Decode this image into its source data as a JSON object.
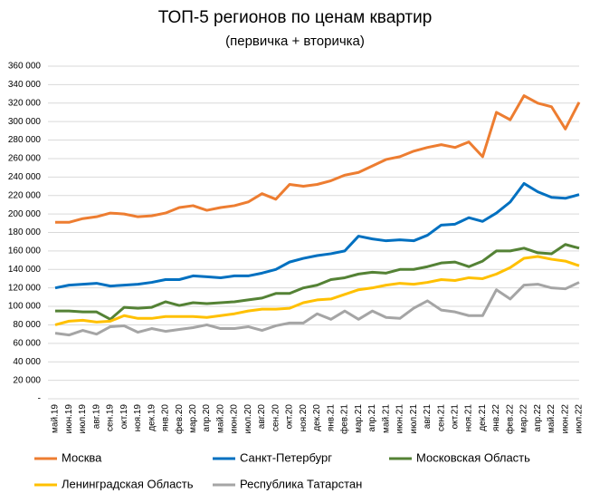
{
  "chart_data": {
    "type": "line",
    "title": "ТОП-5 регионов по ценам квартир",
    "subtitle": "(первичка + вторичка)",
    "categories": [
      "май.19",
      "июн.19",
      "июл.19",
      "авг.19",
      "сен.19",
      "окт.19",
      "ноя.19",
      "дек.19",
      "янв.20",
      "фев.20",
      "мар.20",
      "апр.20",
      "май.20",
      "июн.20",
      "июл.20",
      "авг.20",
      "сен.20",
      "окт.20",
      "ноя.20",
      "дек.20",
      "янв.21",
      "фев.21",
      "мар.21",
      "апр.21",
      "май.21",
      "июн.21",
      "июл.21",
      "авг.21",
      "сен.21",
      "окт.21",
      "ноя.21",
      "дек.21",
      "янв.22",
      "фев.22",
      "мар.22",
      "апр.22",
      "май.22",
      "июн.22",
      "июл.22"
    ],
    "series": [
      {
        "name": "Москва",
        "color": "#ED7D31",
        "values": [
          191000,
          191000,
          195000,
          197000,
          201000,
          200000,
          197000,
          198000,
          201000,
          207000,
          209000,
          204000,
          207000,
          209000,
          213000,
          222000,
          216000,
          232000,
          230000,
          232000,
          236000,
          242000,
          245000,
          252000,
          259000,
          262000,
          268000,
          272000,
          275000,
          272000,
          278000,
          262000,
          310000,
          302000,
          328000,
          320000,
          316000,
          292000,
          321000
        ]
      },
      {
        "name": "Санкт-Петербург",
        "color": "#0070C0",
        "values": [
          120000,
          123000,
          124000,
          125000,
          122000,
          123000,
          124000,
          126000,
          129000,
          129000,
          133000,
          132000,
          131000,
          133000,
          133000,
          136000,
          140000,
          148000,
          152000,
          155000,
          157000,
          160000,
          176000,
          173000,
          171000,
          172000,
          171000,
          177000,
          188000,
          189000,
          196000,
          192000,
          201000,
          213000,
          233000,
          224000,
          218000,
          217000,
          221000
        ]
      },
      {
        "name": "Московская Область",
        "color": "#548235",
        "values": [
          95000,
          95000,
          94000,
          94000,
          86000,
          99000,
          98000,
          99000,
          105000,
          101000,
          104000,
          103000,
          104000,
          105000,
          107000,
          109000,
          114000,
          114000,
          120000,
          123000,
          129000,
          131000,
          135000,
          137000,
          136000,
          140000,
          140000,
          143000,
          147000,
          148000,
          143000,
          149000,
          160000,
          160000,
          163000,
          158000,
          157000,
          167000,
          163000
        ]
      },
      {
        "name": "Ленинградская Область",
        "color": "#FFC000",
        "values": [
          80000,
          84000,
          85000,
          83000,
          84000,
          90000,
          87000,
          87000,
          89000,
          89000,
          89000,
          88000,
          90000,
          92000,
          95000,
          97000,
          97000,
          98000,
          104000,
          107000,
          108000,
          113000,
          118000,
          120000,
          123000,
          125000,
          124000,
          126000,
          129000,
          128000,
          131000,
          130000,
          135000,
          142000,
          152000,
          154000,
          151000,
          149000,
          144000
        ]
      },
      {
        "name": "Республика Татарстан",
        "color": "#A5A5A5",
        "values": [
          71000,
          69000,
          74000,
          70000,
          78000,
          79000,
          72000,
          76000,
          73000,
          75000,
          77000,
          80000,
          76000,
          76000,
          78000,
          74000,
          79000,
          82000,
          82000,
          92000,
          86000,
          95000,
          86000,
          95000,
          88000,
          87000,
          98000,
          106000,
          96000,
          94000,
          90000,
          90000,
          118000,
          108000,
          123000,
          124000,
          120000,
          119000,
          126000
        ]
      }
    ],
    "ylim": [
      0,
      360000
    ],
    "yticks": [
      {
        "value": 0,
        "label": "-"
      },
      {
        "value": 20000,
        "label": "20 000"
      },
      {
        "value": 40000,
        "label": "40 000"
      },
      {
        "value": 60000,
        "label": "60 000"
      },
      {
        "value": 80000,
        "label": "80 000"
      },
      {
        "value": 100000,
        "label": "100 000"
      },
      {
        "value": 120000,
        "label": "120 000"
      },
      {
        "value": 140000,
        "label": "140 000"
      },
      {
        "value": 160000,
        "label": "160 000"
      },
      {
        "value": 180000,
        "label": "180 000"
      },
      {
        "value": 200000,
        "label": "200 000"
      },
      {
        "value": 220000,
        "label": "220 000"
      },
      {
        "value": 240000,
        "label": "240 000"
      },
      {
        "value": 260000,
        "label": "260 000"
      },
      {
        "value": 280000,
        "label": "280 000"
      },
      {
        "value": 300000,
        "label": "300 000"
      },
      {
        "value": 320000,
        "label": "320 000"
      },
      {
        "value": 340000,
        "label": "340 000"
      },
      {
        "value": 360000,
        "label": "360 000"
      }
    ],
    "grid": true,
    "legend": "bottom"
  }
}
